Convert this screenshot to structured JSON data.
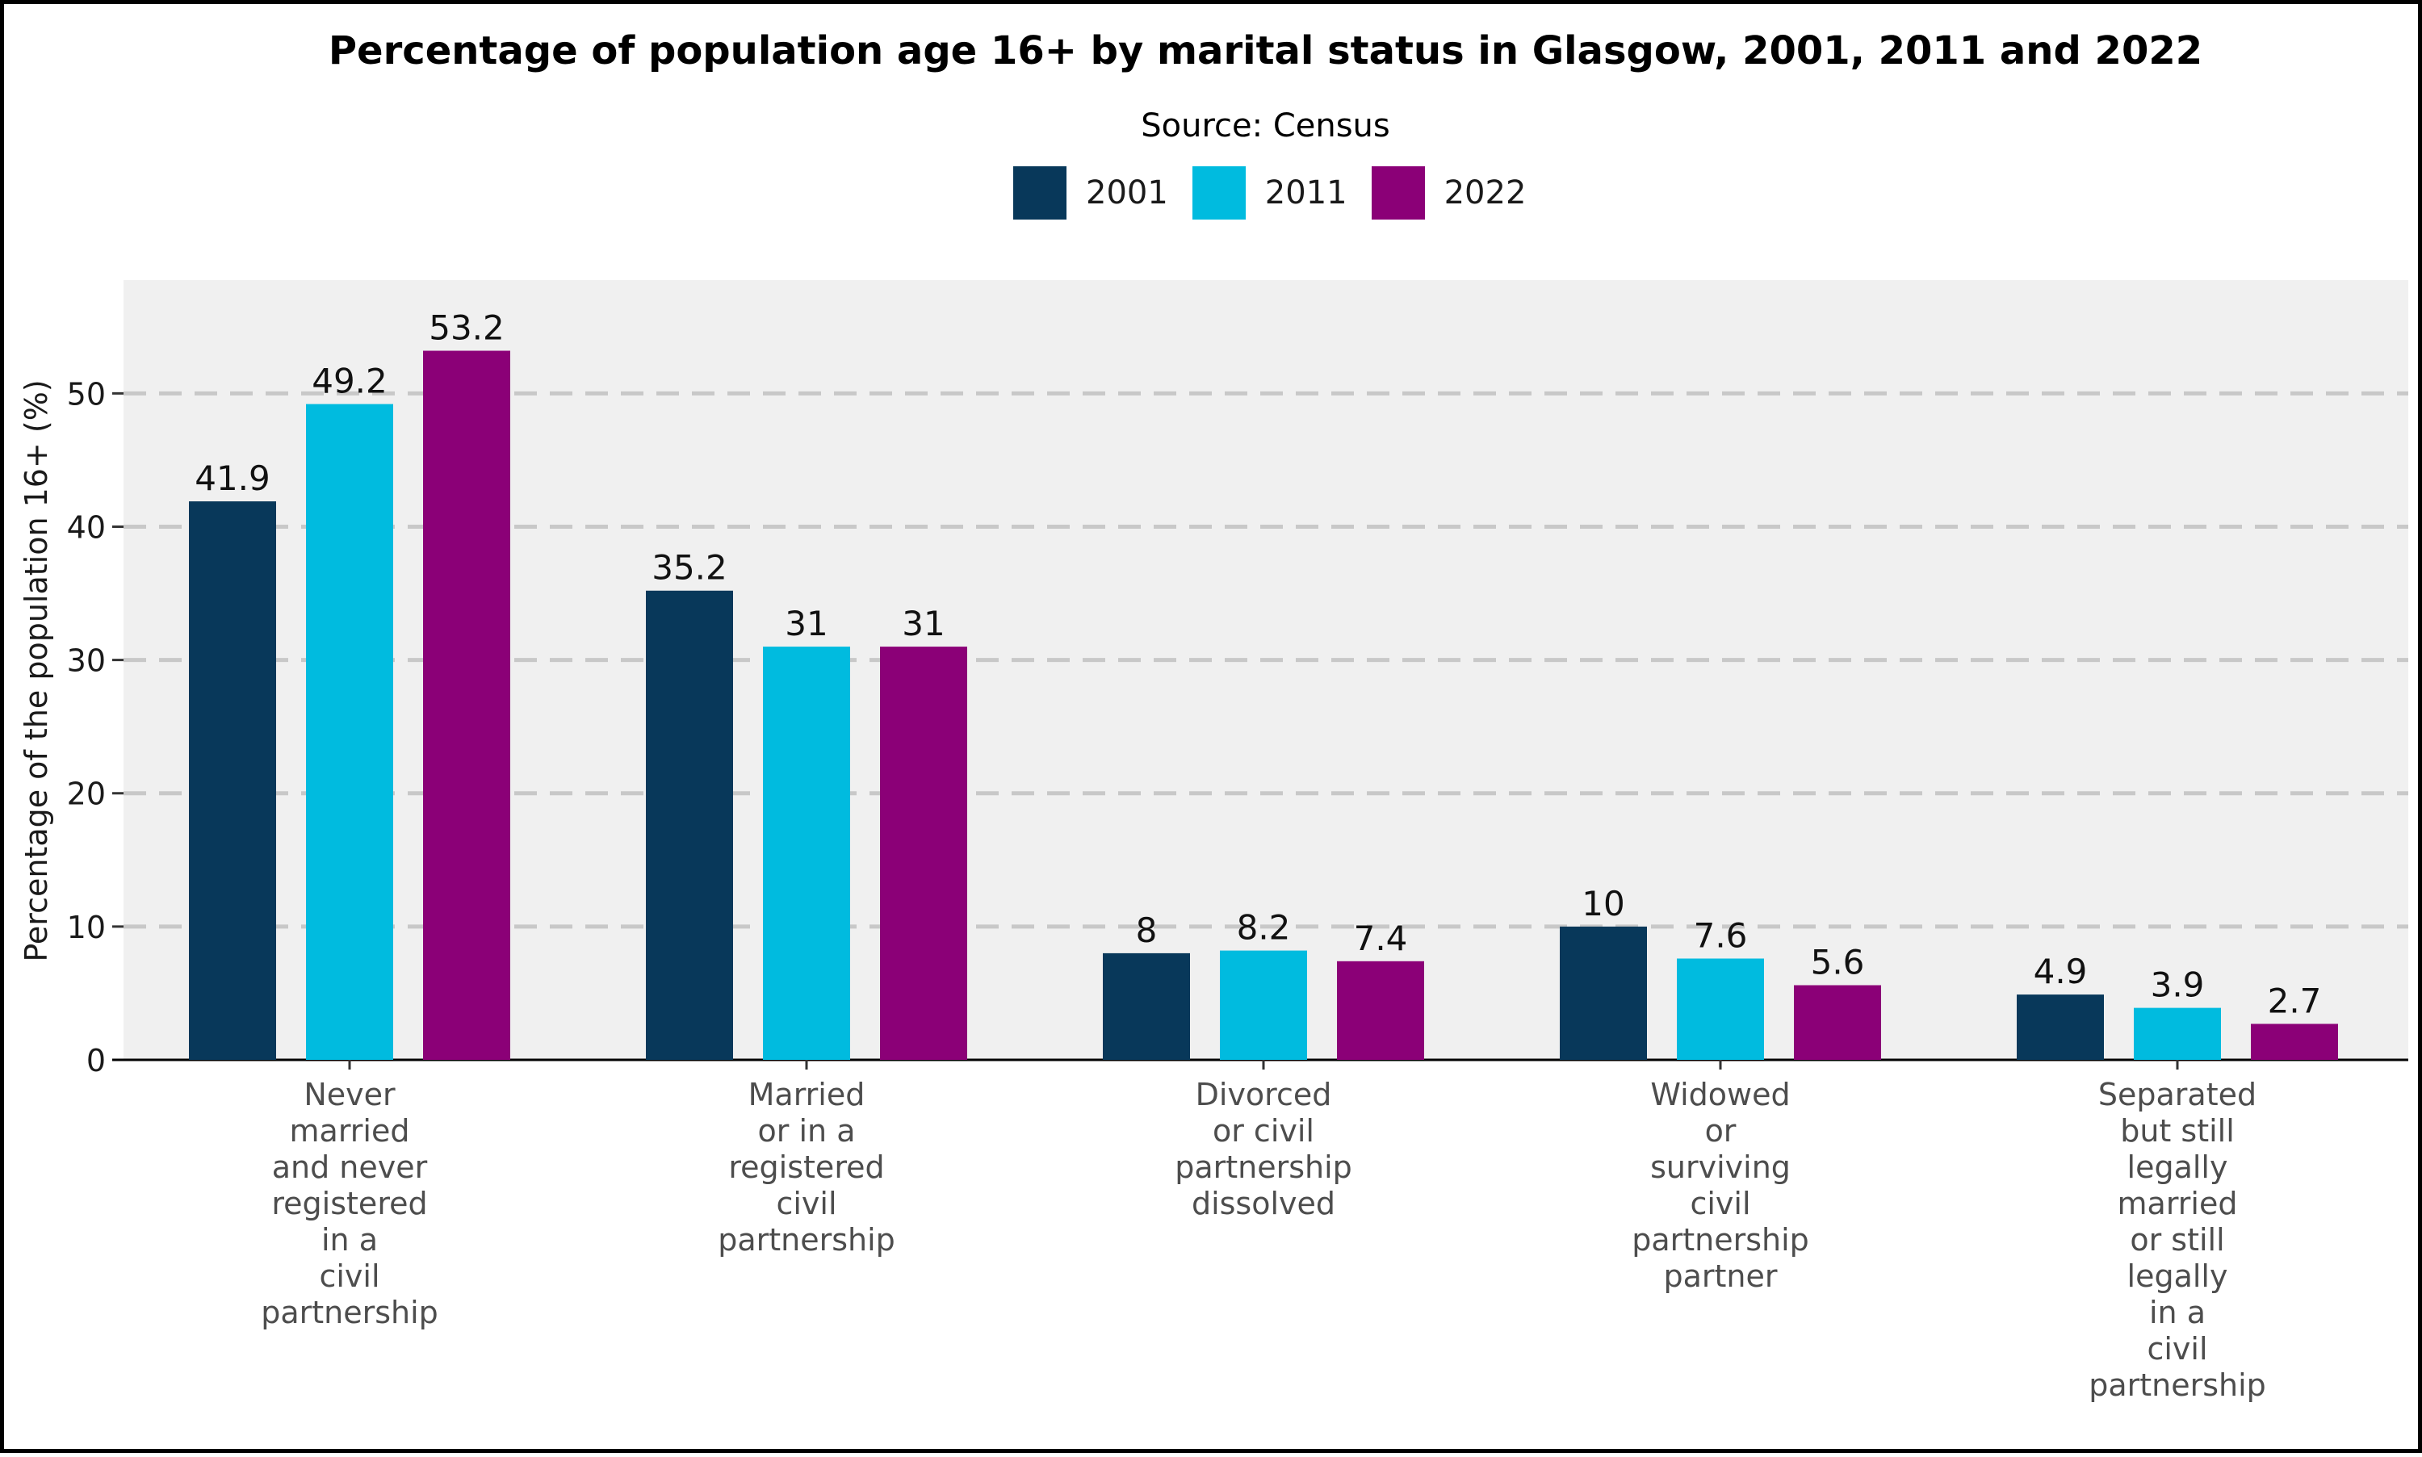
{
  "chart_data": {
    "type": "bar",
    "title": "Percentage of population age 16+ by marital status in Glasgow, 2001, 2011 and 2022",
    "subtitle": "Source: Census",
    "xlabel": "",
    "ylabel": "Percentage of the population 16+ (%)",
    "ylim": [
      0,
      58.5
    ],
    "yticks": [
      0,
      10,
      20,
      30,
      40,
      50
    ],
    "grid": "horizontal dashed",
    "legend_position": "top",
    "categories": [
      "Never married and never registered in a civil partnership",
      "Married or in a registered civil partnership",
      "Divorced or civil partnership dissolved",
      "Widowed or surviving civil partnership partner",
      "Separated but still legally married or still legally in a civil partnership"
    ],
    "category_lines": [
      [
        "Never",
        "married",
        "and never",
        "registered",
        "in a",
        "civil",
        "partnership"
      ],
      [
        "Married",
        "or in a",
        "registered",
        "civil",
        "partnership"
      ],
      [
        "Divorced",
        "or civil",
        "partnership",
        "dissolved"
      ],
      [
        "Widowed",
        "or",
        "surviving",
        "civil",
        "partnership",
        "partner"
      ],
      [
        "Separated",
        "but still",
        "legally",
        "married",
        "or still",
        "legally",
        "in a",
        "civil",
        "partnership"
      ]
    ],
    "series": [
      {
        "name": "2001",
        "color": "#08385a",
        "values": [
          41.9,
          35.2,
          8,
          10,
          4.9
        ]
      },
      {
        "name": "2011",
        "color": "#00bbdf",
        "values": [
          49.2,
          31,
          8.2,
          7.6,
          3.9
        ]
      },
      {
        "name": "2022",
        "color": "#8b0077",
        "values": [
          53.2,
          31,
          7.4,
          5.6,
          2.7
        ]
      }
    ]
  }
}
